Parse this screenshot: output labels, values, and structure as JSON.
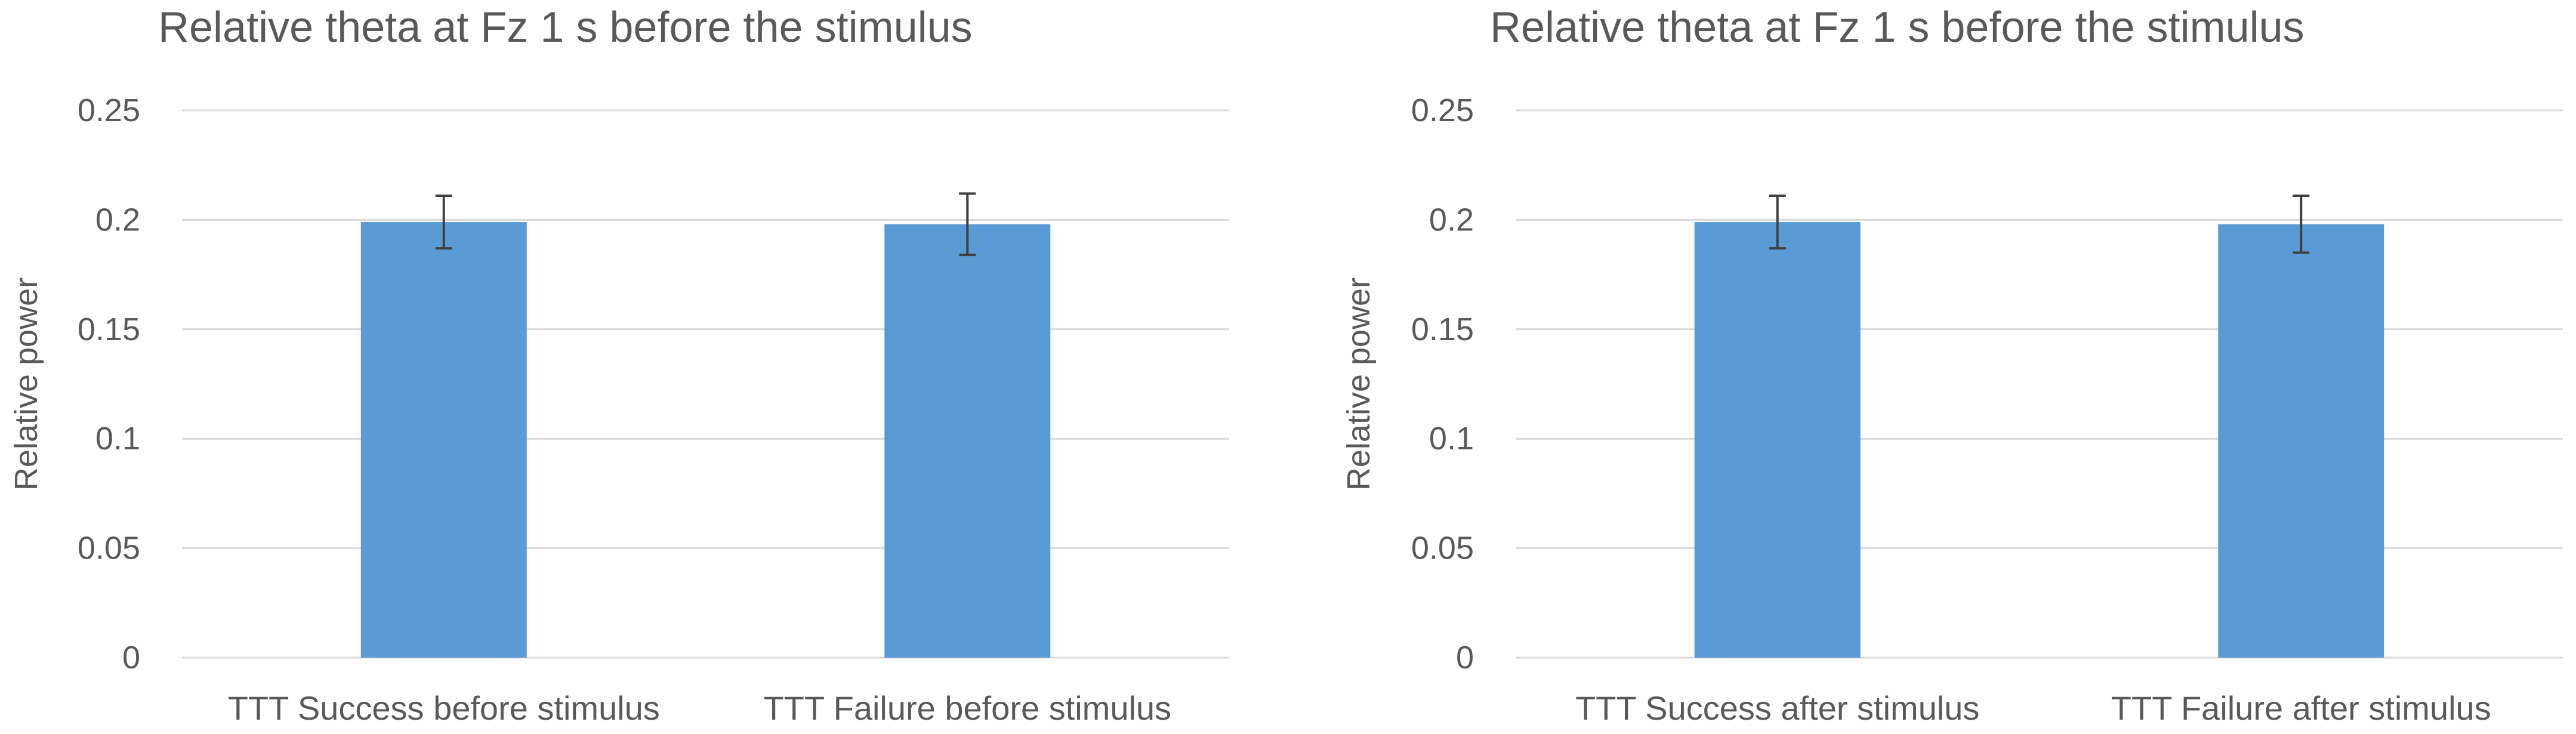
{
  "colors": {
    "bar": "#5b9bd5",
    "grid": "#d9d9d9",
    "text": "#595959",
    "error_bar": "#404040"
  },
  "chart_data": [
    {
      "type": "bar",
      "title": "Relative theta at Fz 1 s before the stimulus",
      "xlabel": "",
      "ylabel": "Relative power",
      "ylim": [
        0,
        0.25
      ],
      "yticks": [
        0,
        0.05,
        0.1,
        0.15,
        0.2,
        0.25
      ],
      "ytick_labels": [
        "0",
        "0.05",
        "0.1",
        "0.15",
        "0.2",
        "0.25"
      ],
      "grid": true,
      "legend": "none",
      "categories": [
        "TTT Success before stimulus",
        "TTT Failure before stimulus"
      ],
      "values": [
        0.199,
        0.198
      ],
      "error": [
        0.012,
        0.014
      ]
    },
    {
      "type": "bar",
      "title": "Relative theta at Fz 1 s before the stimulus",
      "xlabel": "",
      "ylabel": "Relative power",
      "ylim": [
        0,
        0.25
      ],
      "yticks": [
        0,
        0.05,
        0.1,
        0.15,
        0.2,
        0.25
      ],
      "ytick_labels": [
        "0",
        "0.05",
        "0.1",
        "0.15",
        "0.2",
        "0.25"
      ],
      "grid": true,
      "legend": "none",
      "categories": [
        "TTT Success after stimulus",
        "TTT Failure after stimulus"
      ],
      "values": [
        0.199,
        0.198
      ],
      "error": [
        0.012,
        0.013
      ]
    }
  ]
}
